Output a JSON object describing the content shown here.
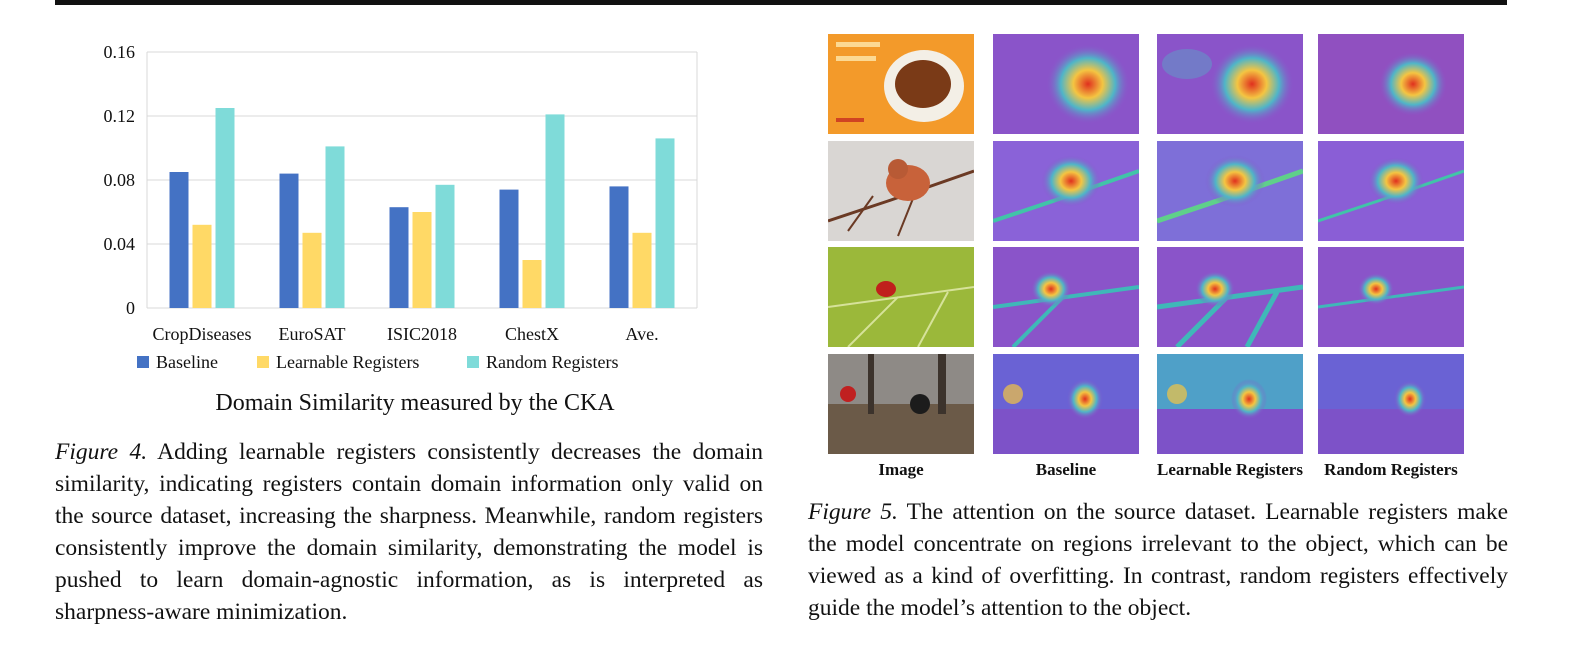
{
  "figure4": {
    "caption_label": "Figure 4.",
    "caption_text": " Adding learnable registers consistently decreases the domain similarity, indicating registers contain domain information only valid on the source dataset, increasing the sharpness. Meanwhile, random registers consistently improve the domain similarity, demonstrating the model is pushed to learn domain-agnostic information, as is interpreted as sharpness-aware minimization."
  },
  "figure5": {
    "caption_label": "Figure 5.",
    "caption_text": " The attention on the source dataset. Learnable registers make the model concentrate on regions irrelevant to the object, which can be viewed as a kind of overfitting. In contrast, random registers effectively guide the model’s attention to the object.",
    "column_labels": [
      "Image",
      "Baseline",
      "Learnable Registers",
      "Random Registers"
    ],
    "rows": [
      "soup-bowl",
      "bird-on-branch",
      "ladybug-on-leaf",
      "people-in-forest"
    ]
  },
  "chart_data": {
    "type": "bar",
    "title": "Domain Similarity measured by the CKA",
    "categories": [
      "CropDiseases",
      "EuroSAT",
      "ISIC2018",
      "ChestX",
      "Ave."
    ],
    "series": [
      {
        "name": "Baseline",
        "color": "#4472c4",
        "values": [
          0.085,
          0.084,
          0.063,
          0.074,
          0.076
        ]
      },
      {
        "name": "Learnable Registers",
        "color": "#ffd966",
        "values": [
          0.052,
          0.047,
          0.06,
          0.03,
          0.047
        ]
      },
      {
        "name": "Random Registers",
        "color": "#7fdbd9",
        "values": [
          0.125,
          0.101,
          0.077,
          0.121,
          0.106
        ]
      }
    ],
    "yticks": [
      "0",
      "0.04",
      "0.08",
      "0.12",
      "0.16"
    ],
    "ylim": [
      0,
      0.16
    ],
    "grid": true,
    "legend_position": "bottom"
  }
}
